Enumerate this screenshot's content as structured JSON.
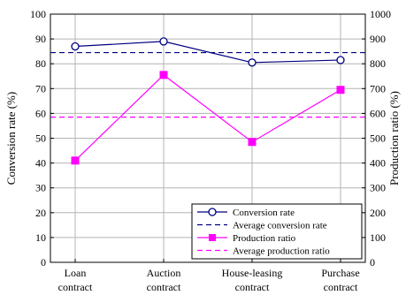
{
  "chart_data": {
    "type": "line",
    "categories": [
      [
        "Loan",
        "contract"
      ],
      [
        "Auction",
        "contract"
      ],
      [
        "House-leasing",
        "contract"
      ],
      [
        "Purchase",
        "contract"
      ]
    ],
    "y_left": {
      "label": "Conversion rate (%)",
      "lim": [
        0,
        100
      ],
      "ticks": [
        0,
        10,
        20,
        30,
        40,
        50,
        60,
        70,
        80,
        90,
        100
      ]
    },
    "y_right": {
      "label": "Production ratio (%)",
      "lim": [
        0,
        1000
      ],
      "ticks": [
        0,
        100,
        200,
        300,
        400,
        500,
        600,
        700,
        800,
        900,
        1000
      ]
    },
    "grid": true,
    "legend_position": "bottom-right",
    "series": [
      {
        "name": "Conversion rate",
        "axis": "left",
        "values": [
          87,
          89,
          80.5,
          81.5
        ],
        "color": "#000080",
        "marker": "open-circle"
      },
      {
        "name": "Average conversion rate",
        "axis": "left",
        "constant": 84.5,
        "color": "#000080",
        "style": "dashed"
      },
      {
        "name": "Production ratio",
        "axis": "right",
        "values": [
          410,
          755,
          485,
          695
        ],
        "color": "#ff00ff",
        "marker": "filled-square"
      },
      {
        "name": "Average production ratio",
        "axis": "right",
        "constant": 585,
        "color": "#ff00ff",
        "style": "dashed"
      }
    ]
  }
}
